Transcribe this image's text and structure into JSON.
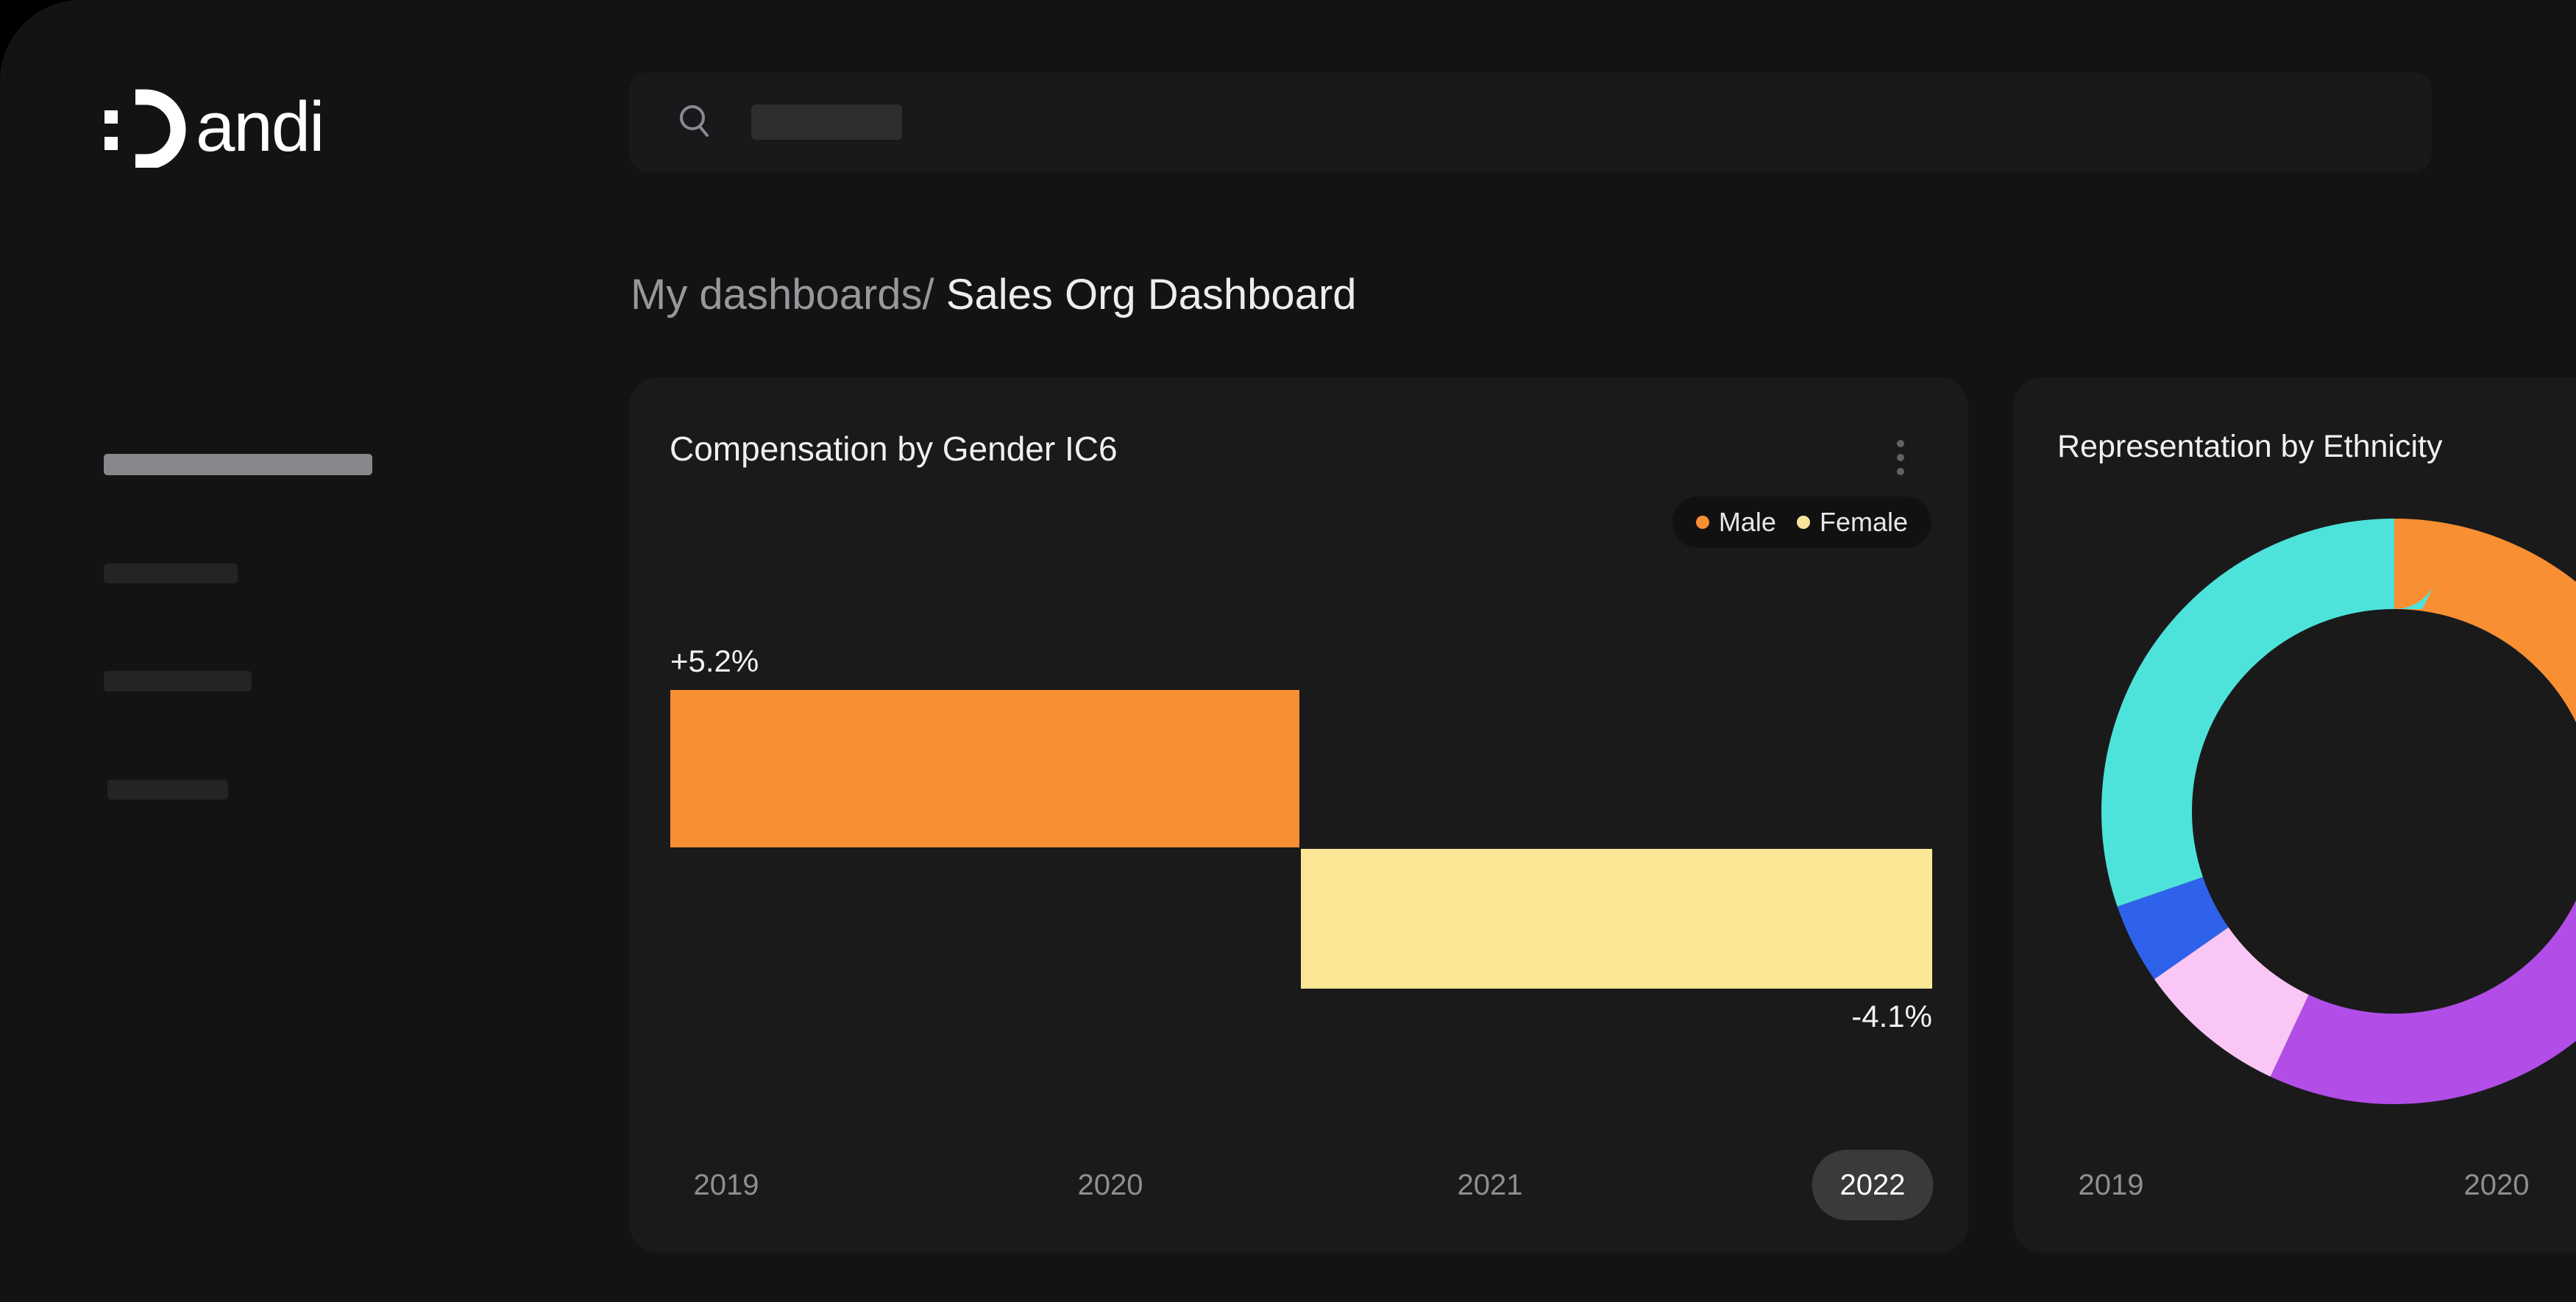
{
  "logo": {
    "name": "Dandi",
    "wordmark": "andi"
  },
  "search": {
    "placeholder_text": ""
  },
  "breadcrumb": {
    "parent": "My dashboards/",
    "current": "Sales Org Dashboard"
  },
  "colors": {
    "orange": "#F88F33",
    "yellow": "#FCE796",
    "legend_yellow": "#F8E49A",
    "cyan": "#4DE3DB",
    "purple": "#B24DE8",
    "pink": "#FAC6F5",
    "blue": "#2F62EA",
    "active_year_pill_bg": "#3A3A3D"
  },
  "comp_card": {
    "title": "Compensation by Gender IC6",
    "menu_icon": "kebab-menu-icon",
    "legend": [
      {
        "label": "Male",
        "color": "#F88F33"
      },
      {
        "label": "Female",
        "color": "#F8E49A"
      }
    ],
    "x_labels": [
      "2019",
      "2020",
      "2021",
      "2022"
    ],
    "active_x_label": "2022",
    "annotations": {
      "male_change": "+5.2%",
      "female_change": "-4.1%"
    }
  },
  "ethnicity_card": {
    "title": "Representation by Ethnicity",
    "x_labels": [
      "2019",
      "2020"
    ]
  },
  "chart_data": [
    {
      "type": "bar",
      "title": "Compensation by Gender IC6",
      "x": [
        "2019",
        "2020",
        "2021",
        "2022"
      ],
      "series": [
        {
          "name": "Male",
          "value": 5.2,
          "value_label": "+5.2%",
          "span": [
            "2019",
            "2020"
          ],
          "color": "#F88F33"
        },
        {
          "name": "Female",
          "value": -4.1,
          "value_label": "-4.1%",
          "span": [
            "2021",
            "2022"
          ],
          "color": "#FCE796"
        }
      ],
      "legend_position": "top-right",
      "grid": false
    },
    {
      "type": "pie",
      "subtype": "donut",
      "title": "Representation by Ethnicity",
      "x": [
        "2019",
        "2020"
      ],
      "segments": [
        {
          "name": "orange-segment",
          "hex": "#F88F33",
          "start_deg": 0,
          "end_deg": 99,
          "fraction": 0.275
        },
        {
          "name": "purple-segment",
          "hex": "#B24DE8",
          "start_deg": 99,
          "end_deg": 205,
          "fraction": 0.294
        },
        {
          "name": "pink-segment",
          "hex": "#FAC6F5",
          "start_deg": 205,
          "end_deg": 235,
          "fraction": 0.083
        },
        {
          "name": "blue-segment",
          "hex": "#2F62EA",
          "start_deg": 235,
          "end_deg": 251,
          "fraction": 0.044
        },
        {
          "name": "cyan-segment",
          "hex": "#4DE3DB",
          "start_deg": 251,
          "end_deg": 360,
          "fraction": 0.304
        }
      ],
      "legend_position": "none",
      "grid": false
    }
  ]
}
